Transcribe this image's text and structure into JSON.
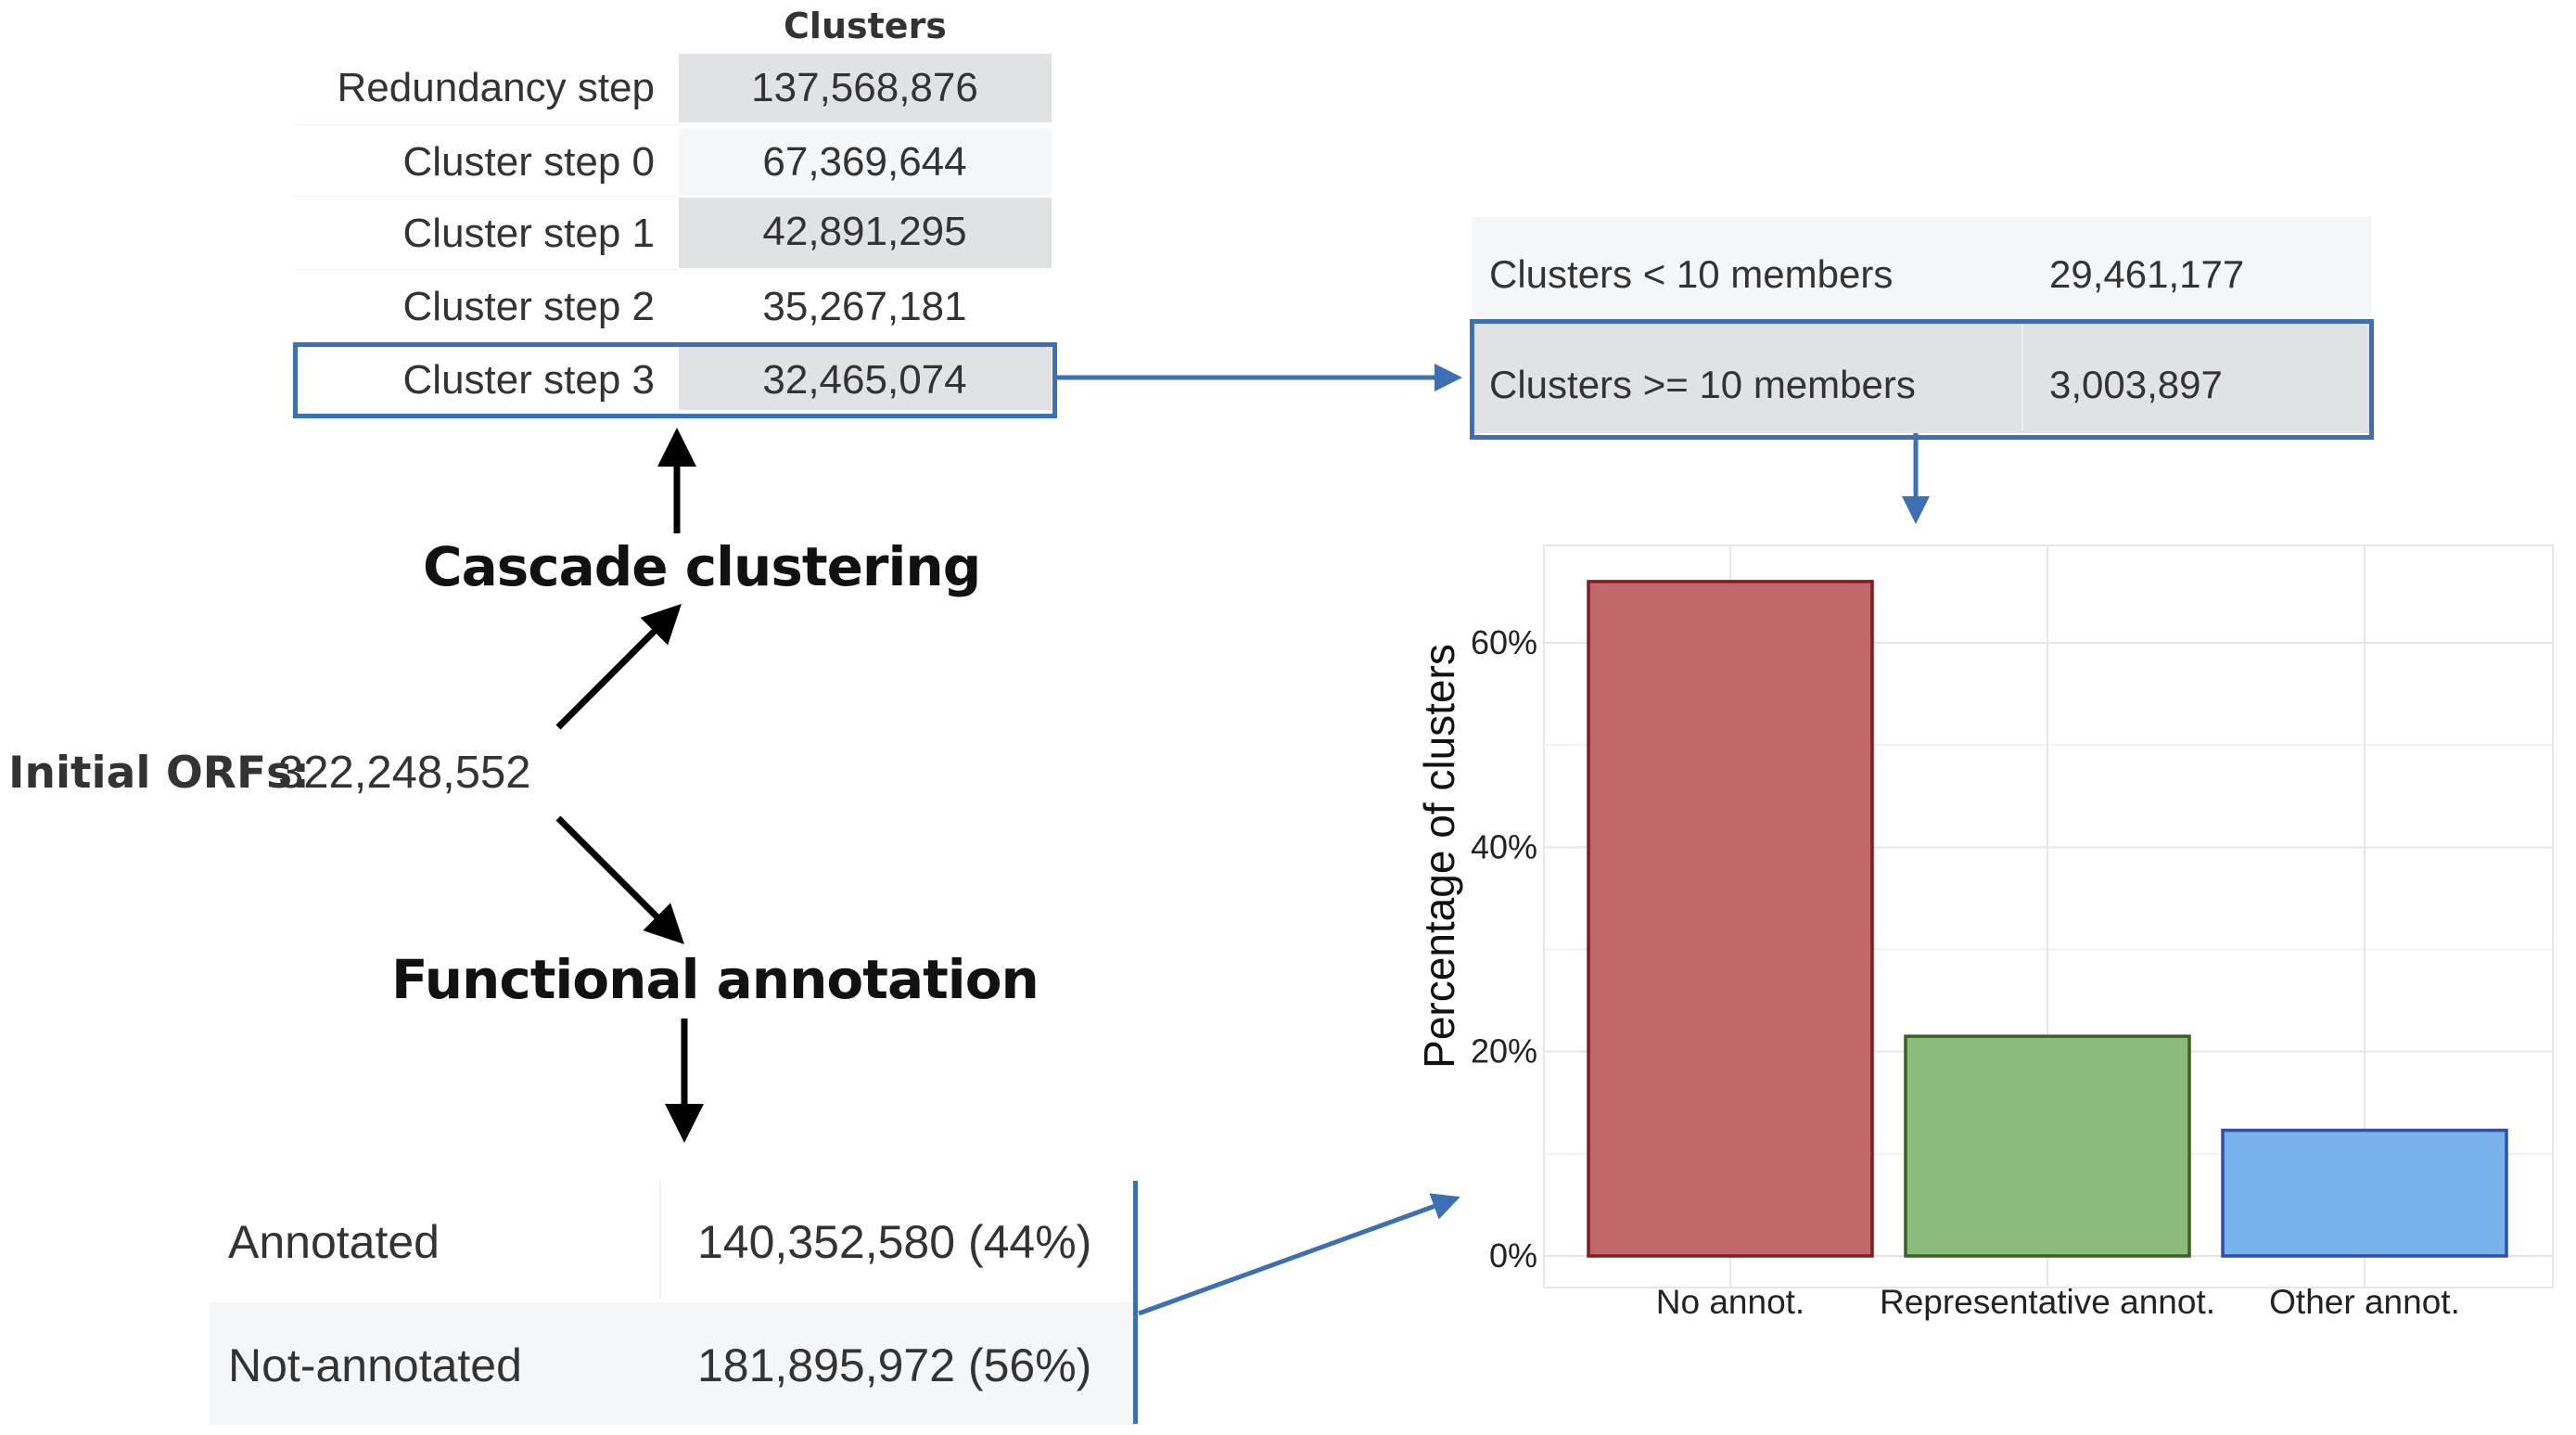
{
  "cluster_table": {
    "header": "Clusters",
    "rows": [
      {
        "label": "Redundancy step",
        "value": "137,568,876"
      },
      {
        "label": "Cluster step 0",
        "value": "67,369,644"
      },
      {
        "label": "Cluster step 1",
        "value": "42,891,295"
      },
      {
        "label": "Cluster step 2",
        "value": "35,267,181"
      },
      {
        "label": "Cluster step 3",
        "value": "32,465,074"
      }
    ],
    "highlight_color": "#3d6fb4"
  },
  "size_table": {
    "rows": [
      {
        "label": "Clusters < 10 members",
        "value": "29,461,177"
      },
      {
        "label": "Clusters >= 10 members",
        "value": "3,003,897"
      }
    ]
  },
  "cascade_heading": "Cascade clustering",
  "functional_heading": "Functional annotation",
  "initial": {
    "label": "Initial ORFs:",
    "value": "322,248,552"
  },
  "annotation_table": {
    "rows": [
      {
        "label": "Annotated",
        "value": "140,352,580 (44%)"
      },
      {
        "label": "Not-annotated",
        "value": "181,895,972 (56%)"
      }
    ]
  },
  "chart_data": {
    "type": "bar",
    "categories": [
      "No annot.",
      "Representative annot.",
      "Other annot."
    ],
    "values": [
      66,
      21.5,
      12.3
    ],
    "unit": "%",
    "ylabel": "Percentage of clusters",
    "ylim": [
      0,
      68
    ],
    "yticks": [
      0,
      20,
      40,
      60
    ],
    "ytick_labels": [
      "0%",
      "20%",
      "40%",
      "60%"
    ],
    "grid": true,
    "colors": {
      "fill": [
        "#c06769",
        "#8bbb7d",
        "#77b3ea"
      ],
      "stroke": [
        "#7f1d1f",
        "#3c6124",
        "#2e4fae"
      ]
    }
  }
}
